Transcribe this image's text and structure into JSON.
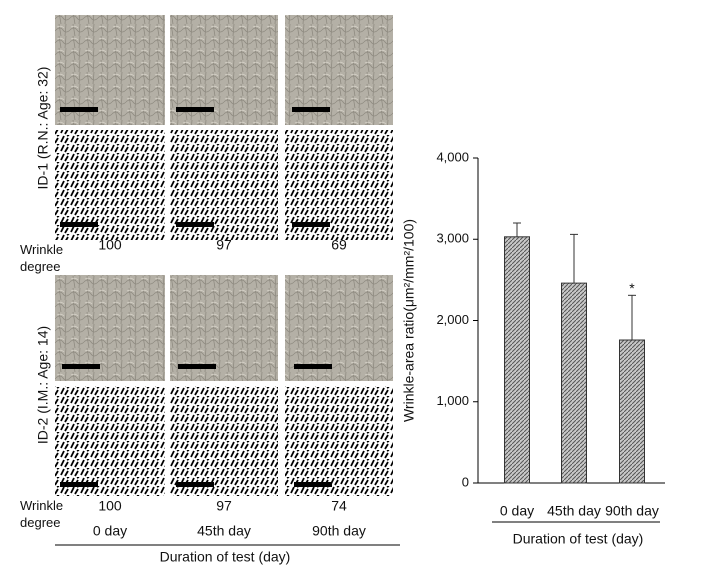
{
  "panels": {
    "rows": [
      {
        "label": "ID-1 (R.N.: Age: 32)",
        "wrinkle_label": "Wrinkle degree",
        "wrinkle_values": [
          "100",
          "97",
          "69"
        ]
      },
      {
        "label": "ID-2 (I.M.: Age: 14)",
        "wrinkle_label": "Wrinkle degree",
        "wrinkle_values": [
          "100",
          "97",
          "74"
        ]
      }
    ],
    "columns": [
      "0 day",
      "45th day",
      "90th day"
    ],
    "xlabel": "Duration  of  test (day)"
  },
  "chart_data": {
    "type": "bar",
    "categories": [
      "0 day",
      "45th day",
      "90th day"
    ],
    "values": [
      3030,
      2460,
      1760
    ],
    "errors": [
      170,
      600,
      550
    ],
    "color": "#8c8c8c",
    "ylabel": "Wrinkle-area ratio(μm²/mm²/100)",
    "xlabel": "Duration    of    test (day)",
    "ylim": [
      0,
      4000
    ],
    "yticks": [
      {
        "value": 0,
        "label": "0"
      },
      {
        "value": 1000,
        "label": "1,000"
      },
      {
        "value": 2000,
        "label": "2,000"
      },
      {
        "value": 3000,
        "label": "3,000"
      },
      {
        "value": 4000,
        "label": "4,000"
      }
    ],
    "annotations": [
      {
        "text": "*",
        "category": "90th day"
      }
    ]
  }
}
